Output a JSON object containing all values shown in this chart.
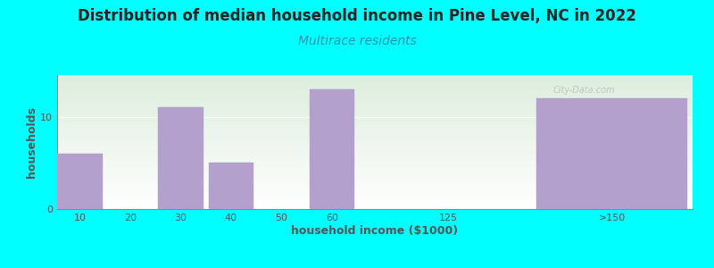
{
  "title": "Distribution of median household income in Pine Level, NC in 2022",
  "subtitle": "Multirace residents",
  "xlabel": "household income ($1000)",
  "ylabel": "households",
  "background_color": "#00FFFF",
  "plot_bg_top": "#ddeedd",
  "plot_bg_bottom": "#ffffff",
  "bar_color": "#b3a0cc",
  "title_fontsize": 12,
  "subtitle_fontsize": 10,
  "subtitle_color": "#2299aa",
  "title_color": "#222222",
  "axis_label_fontsize": 9,
  "tick_fontsize": 8,
  "tick_label_color": "#555555",
  "axis_color": "#888888",
  "categories": [
    "10",
    "20",
    "30",
    "40",
    "50",
    "60",
    "125",
    ">150"
  ],
  "bar_lefts": [
    0,
    1,
    2,
    3,
    4,
    5,
    7.5,
    9.5
  ],
  "bar_widths": [
    0.9,
    0.9,
    0.9,
    0.9,
    0.9,
    0.9,
    0.5,
    3.0
  ],
  "values": [
    6,
    0,
    11,
    5,
    0,
    13,
    0,
    12
  ],
  "tick_positions": [
    0.45,
    1.45,
    2.45,
    3.45,
    4.45,
    5.45,
    7.75,
    11.0
  ],
  "tick_labels": [
    "10",
    "20",
    "30",
    "40",
    "50",
    "60",
    "125",
    ">150"
  ],
  "xlim": [
    0,
    12.6
  ],
  "ylim": [
    0,
    14.5
  ],
  "yticks": [
    0,
    10
  ],
  "gridline_y": 10,
  "watermark": "City-Data.com"
}
